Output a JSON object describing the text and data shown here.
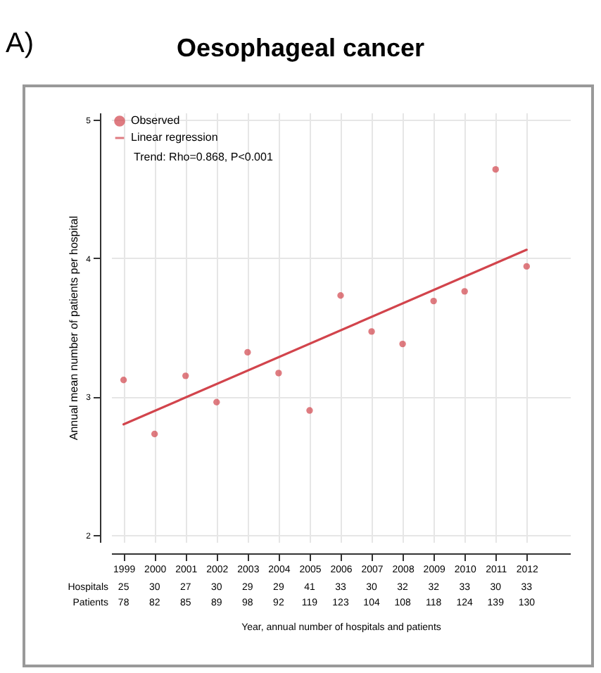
{
  "chart_data": {
    "type": "scatter",
    "title": "Oesophageal cancer",
    "xlabel": "Year, annual number of hospitals and patients",
    "ylabel": "Annual mean number of patients per hospital",
    "x": [
      1999,
      2000,
      2001,
      2002,
      2003,
      2004,
      2005,
      2006,
      2007,
      2008,
      2009,
      2010,
      2011,
      2012
    ],
    "series": [
      {
        "name": "Observed",
        "color": "#d2444c",
        "values": [
          3.12,
          2.73,
          3.15,
          2.96,
          3.32,
          3.17,
          2.9,
          3.73,
          3.47,
          3.38,
          3.69,
          3.76,
          4.64,
          3.94
        ]
      },
      {
        "name": "Linear regression",
        "type": "line",
        "color": "#d2444c",
        "x": [
          1999,
          2012
        ],
        "values": [
          2.8,
          4.06
        ]
      }
    ],
    "xlim": [
      1998.6,
      2013.4
    ],
    "xticks": [
      1999,
      2000,
      2001,
      2002,
      2003,
      2004,
      2005,
      2006,
      2007,
      2008,
      2009,
      2010,
      2011,
      2012
    ],
    "ylim": [
      1.95,
      5.05
    ],
    "yticks": [
      2,
      3,
      4,
      5
    ],
    "grid": true,
    "legend": "top left",
    "annotations": [
      "A)",
      "Trend: Rho=0.868, P<0.001",
      "Hospitals",
      "Patients",
      "25",
      "30",
      "27",
      "30",
      "29",
      "29",
      "41",
      "33",
      "30",
      "32",
      "32",
      "33",
      "30",
      "33",
      "78",
      "82",
      "85",
      "89",
      "98",
      "92",
      "119",
      "123",
      "104",
      "108",
      "118",
      "124",
      "139",
      "130"
    ]
  }
}
